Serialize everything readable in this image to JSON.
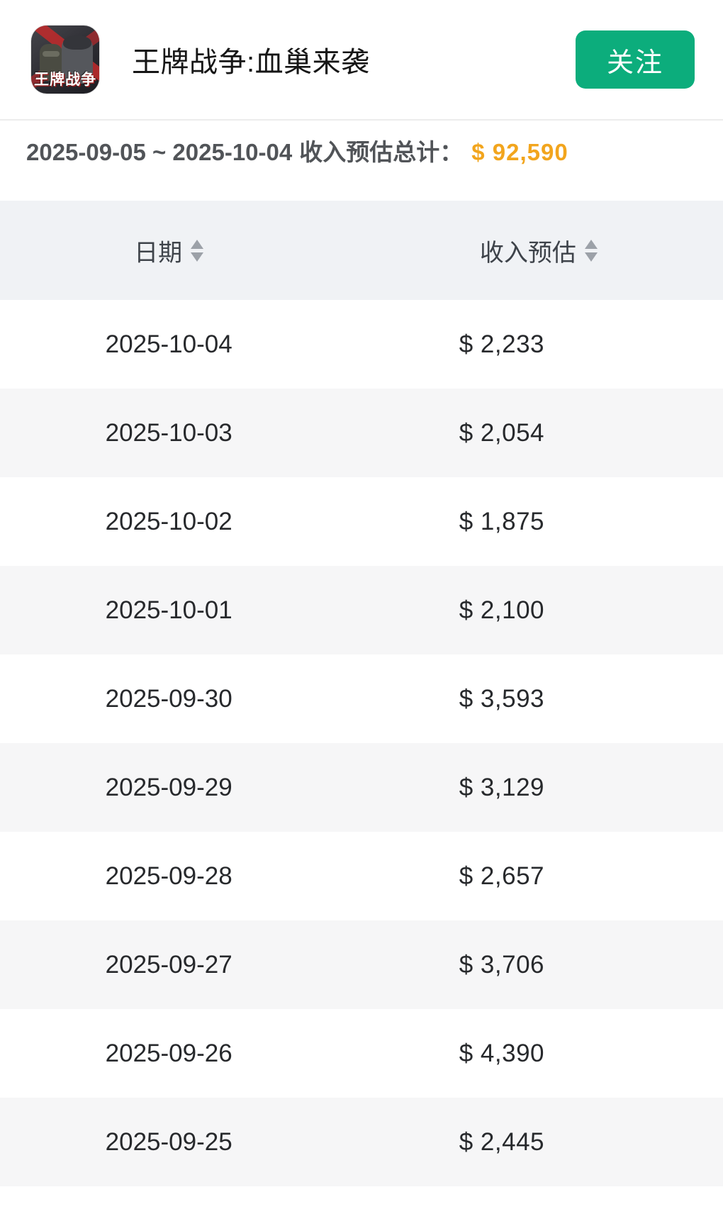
{
  "app": {
    "icon_label": "王牌战争",
    "title": "王牌战争:血巢来袭",
    "follow_button": "关注"
  },
  "summary": {
    "date_range": "2025-09-05 ~ 2025-10-04",
    "label": "收入预估总计：",
    "total": "$ 92,590"
  },
  "table": {
    "columns": [
      {
        "label": "日期",
        "sortable": true
      },
      {
        "label": "收入预估",
        "sortable": true
      }
    ],
    "rows": [
      {
        "date": "2025-10-04",
        "revenue": "$ 2,233"
      },
      {
        "date": "2025-10-03",
        "revenue": "$ 2,054"
      },
      {
        "date": "2025-10-02",
        "revenue": "$ 1,875"
      },
      {
        "date": "2025-10-01",
        "revenue": "$ 2,100"
      },
      {
        "date": "2025-09-30",
        "revenue": "$ 3,593"
      },
      {
        "date": "2025-09-29",
        "revenue": "$ 3,129"
      },
      {
        "date": "2025-09-28",
        "revenue": "$ 2,657"
      },
      {
        "date": "2025-09-27",
        "revenue": "$ 3,706"
      },
      {
        "date": "2025-09-26",
        "revenue": "$ 4,390"
      },
      {
        "date": "2025-09-25",
        "revenue": "$ 2,445"
      }
    ]
  },
  "colors": {
    "follow_green": "#0CAD7C",
    "total_orange": "#F2A51D",
    "header_bg": "#F0F2F5",
    "stripe_bg": "#F6F6F7"
  }
}
